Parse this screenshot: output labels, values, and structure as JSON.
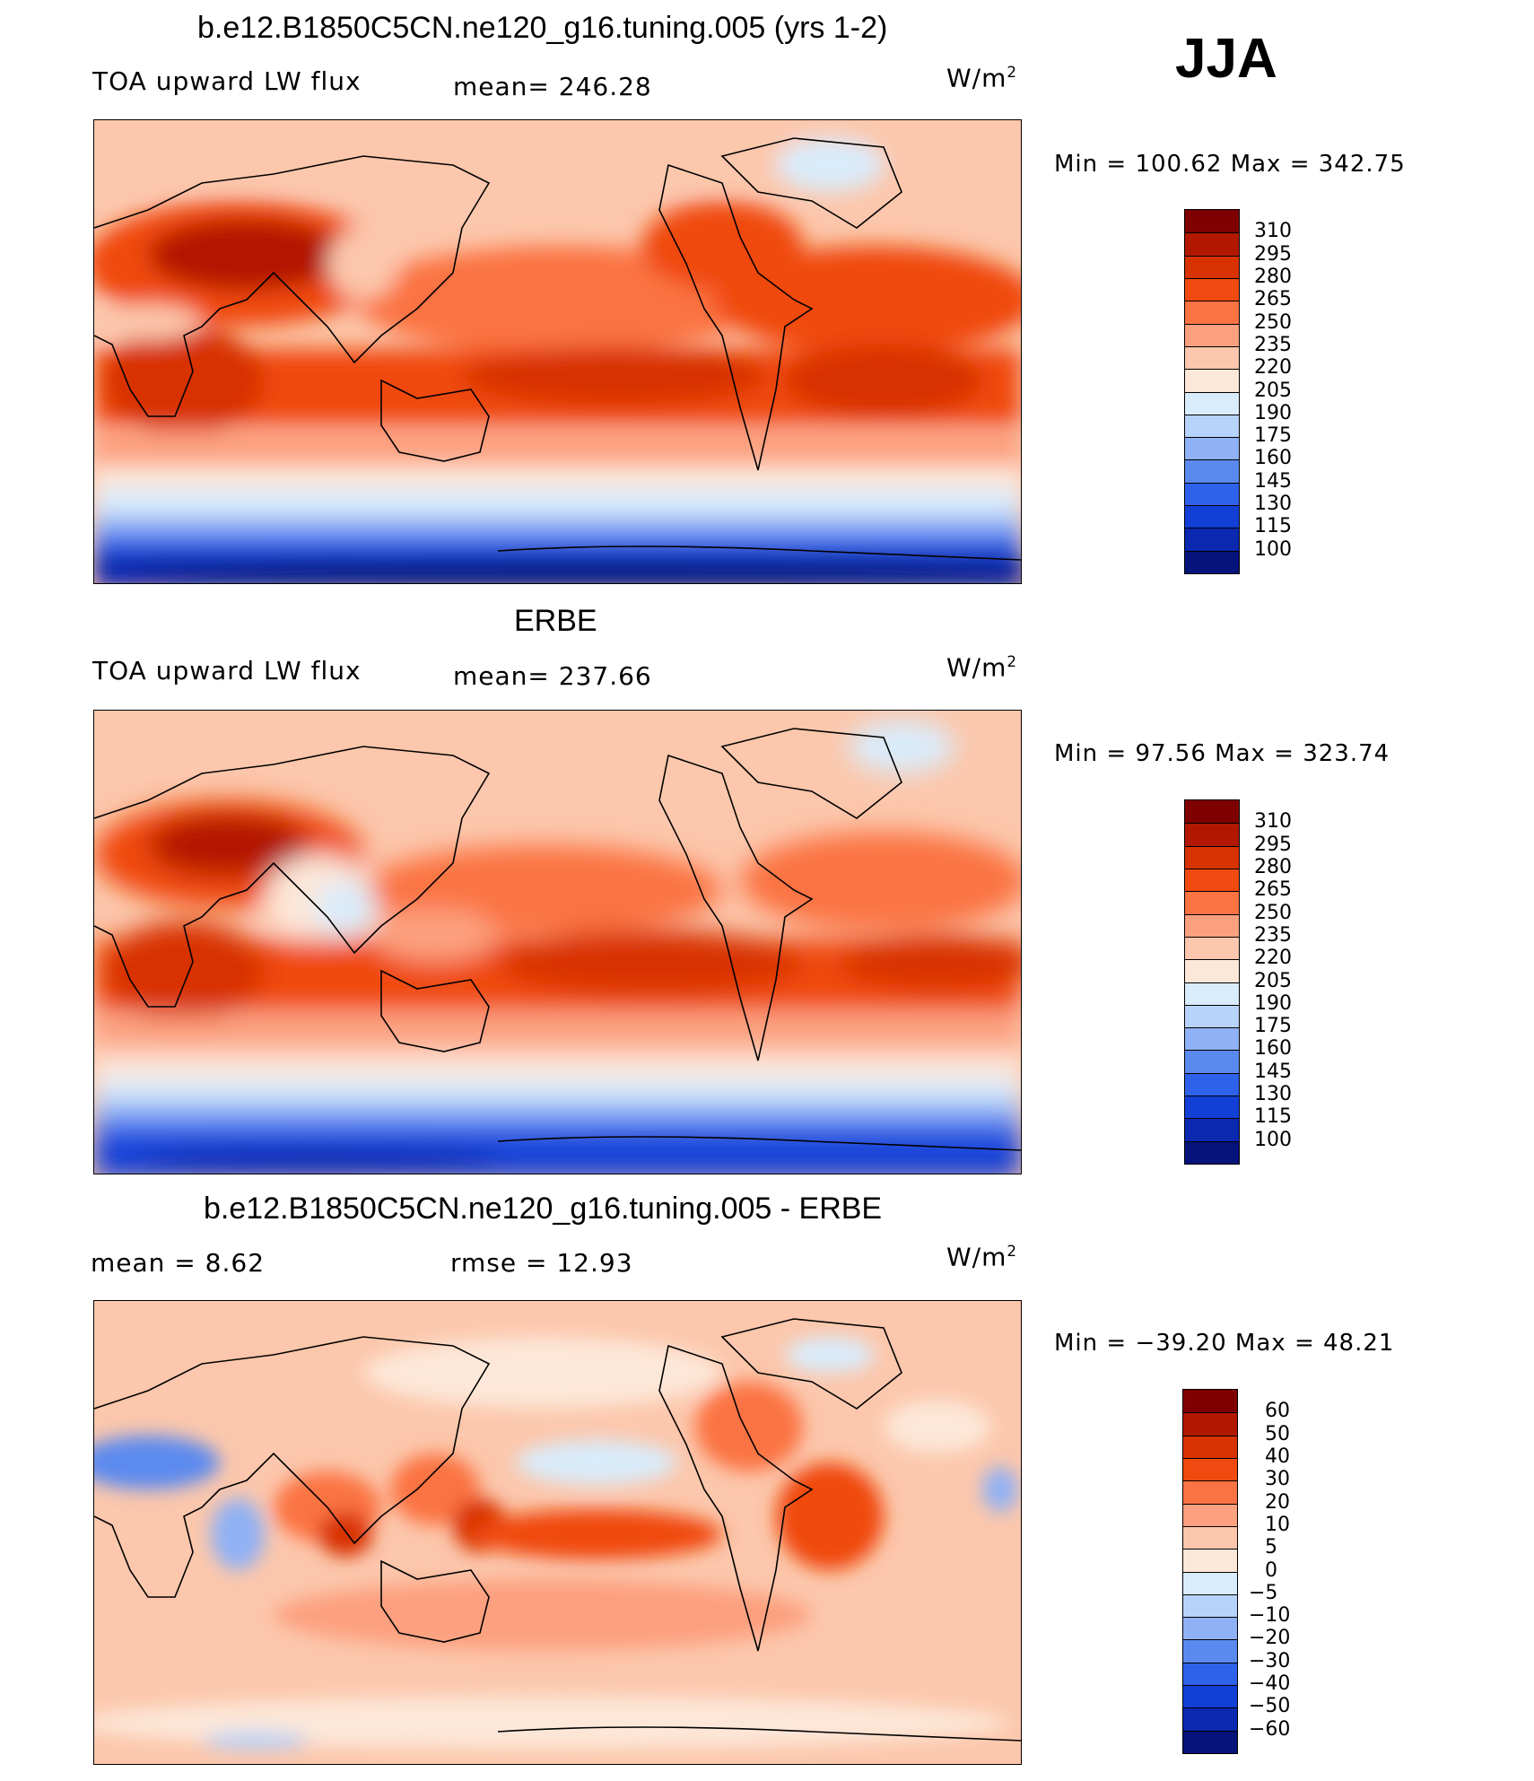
{
  "season": "JJA",
  "units_prefix": "W/m",
  "units_sup": "2",
  "panels": [
    {
      "title": "b.e12.B1850C5CN.ne120_g16.tuning.005 (yrs 1-2)",
      "left_label": "TOA upward LW flux",
      "center_label": "mean=  246.28",
      "minmax": "Min  =  100.62  Max  =  342.75",
      "palette": "abs"
    },
    {
      "title": "ERBE",
      "left_label": "TOA upward LW flux",
      "center_label": "mean=  237.66",
      "minmax": "Min  =    97.56  Max  =  323.74",
      "palette": "abs"
    },
    {
      "title": "b.e12.B1850C5CN.ne120_g16.tuning.005 - ERBE",
      "left_label": "mean  =      8.62",
      "center_label": "rmse  =     12.93",
      "minmax": "Min  =  −39.20  Max  =    48.21",
      "palette": "diff"
    }
  ],
  "colorbars": {
    "abs": {
      "labels": [
        "310",
        "295",
        "280",
        "265",
        "250",
        "235",
        "220",
        "205",
        "190",
        "175",
        "160",
        "145",
        "130",
        "115",
        "100"
      ],
      "colors": [
        "#7f0000",
        "#b21800",
        "#d83200",
        "#f04a10",
        "#fb7343",
        "#fca07f",
        "#fcc7ac",
        "#fde7d8",
        "#d9ecfb",
        "#b8d3fb",
        "#8fb1f5",
        "#5b8aef",
        "#2f62ea",
        "#123fd6",
        "#0a28b0",
        "#05137a"
      ]
    },
    "diff": {
      "labels": [
        "60",
        "50",
        "40",
        "30",
        "20",
        "10",
        "5",
        "0",
        "−5",
        "−10",
        "−20",
        "−30",
        "−40",
        "−50",
        "−60"
      ],
      "colors": [
        "#7f0000",
        "#b21800",
        "#d83200",
        "#f04a10",
        "#fb7343",
        "#fca07f",
        "#fcc7ac",
        "#fde7d8",
        "#d9ecfb",
        "#b8d3fb",
        "#8fb1f5",
        "#5b8aef",
        "#2f62ea",
        "#123fd6",
        "#0a28b0",
        "#05137a"
      ]
    }
  },
  "chart_data": [
    {
      "type": "heatmap",
      "title": "b.e12.B1850C5CN.ne120_g16.tuning.005 (yrs 1-2)",
      "variable": "TOA upward LW flux",
      "units": "W/m2",
      "mean": 246.28,
      "min": 100.62,
      "max": 342.75,
      "contour_levels": [
        100,
        115,
        130,
        145,
        160,
        175,
        190,
        205,
        220,
        235,
        250,
        265,
        280,
        295,
        310
      ],
      "projection": "cylindrical equidistant, global, centered on Pacific"
    },
    {
      "type": "heatmap",
      "title": "ERBE",
      "variable": "TOA upward LW flux",
      "units": "W/m2",
      "mean": 237.66,
      "min": 97.56,
      "max": 323.74,
      "contour_levels": [
        100,
        115,
        130,
        145,
        160,
        175,
        190,
        205,
        220,
        235,
        250,
        265,
        280,
        295,
        310
      ],
      "projection": "cylindrical equidistant, global, centered on Pacific"
    },
    {
      "type": "heatmap",
      "title": "b.e12.B1850C5CN.ne120_g16.tuning.005 - ERBE",
      "variable": "difference",
      "units": "W/m2",
      "mean": 8.62,
      "rmse": 12.93,
      "min": -39.2,
      "max": 48.21,
      "contour_levels": [
        -60,
        -50,
        -40,
        -30,
        -20,
        -10,
        -5,
        0,
        5,
        10,
        20,
        30,
        40,
        50,
        60
      ],
      "projection": "cylindrical equidistant, global, centered on Pacific"
    }
  ]
}
